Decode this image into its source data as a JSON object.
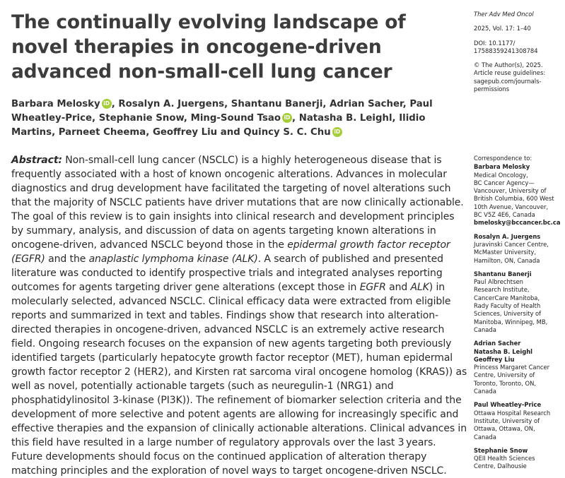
{
  "article": {
    "title": "The continually evolving landscape of novel therapies in oncogene-driven advanced non-small-cell lung cancer",
    "authors": [
      {
        "name": "Barbara Melosky",
        "orcid": true,
        "sep": ", "
      },
      {
        "name": "Rosalyn A. Juergens",
        "orcid": false,
        "sep": ", "
      },
      {
        "name": "Shantanu Banerji",
        "orcid": false,
        "sep": ", "
      },
      {
        "name": "Adrian Sacher",
        "orcid": false,
        "sep": ", "
      },
      {
        "name": "Paul Wheatley-Price",
        "orcid": false,
        "sep": ", "
      },
      {
        "name": "Stephanie Snow",
        "orcid": false,
        "sep": ", "
      },
      {
        "name": "Ming-Sound Tsao",
        "orcid": true,
        "sep": ", "
      },
      {
        "name": "Natasha B. Leighl",
        "orcid": false,
        "sep": ", "
      },
      {
        "name": "Ilidio Martins",
        "orcid": false,
        "sep": ", "
      },
      {
        "name": "Parneet Cheema",
        "orcid": false,
        "sep": ", "
      },
      {
        "name": "Geoffrey Liu",
        "orcid": false,
        "sep": " and "
      },
      {
        "name": "Quincy S. C. Chu",
        "orcid": true,
        "sep": ""
      }
    ],
    "orcid_badge": "iD",
    "abstract_label": "Abstract:",
    "abstract_segments": [
      {
        "t": " Non-small-cell lung cancer (NSCLC) is a highly heterogeneous disease that is frequently associated with a host of known oncogenic alterations. Advances in molecular diagnostics and drug development have facilitated the targeting of novel alterations such that the majority of NSCLC patients have driver mutations that are now clinically actionable. The goal of this review is to gain insights into clinical research and development principles by summary, analysis, and discussion of data on agents targeting known alterations in oncogene-driven, advanced NSCLC beyond those in the ",
        "i": false
      },
      {
        "t": "epidermal growth factor receptor (EGFR)",
        "i": true
      },
      {
        "t": " and the ",
        "i": false
      },
      {
        "t": "anaplastic lymphoma kinase (ALK)",
        "i": true
      },
      {
        "t": ". A search of published and presented literature was conducted to identify prospective trials and integrated analyses reporting outcomes for agents targeting driver gene alterations (except those in ",
        "i": false
      },
      {
        "t": "EGFR",
        "i": true
      },
      {
        "t": " and ",
        "i": false
      },
      {
        "t": "ALK",
        "i": true
      },
      {
        "t": ") in molecularly selected, advanced NSCLC. Clinical efficacy data were extracted from eligible reports and summarized in text and tables. Findings show that research into alteration-directed therapies in oncogene-driven, advanced NSCLC is an extremely active research field. Ongoing research focuses on the expansion of new agents targeting both previously identified targets (particularly hepatocyte growth factor receptor (MET), human epidermal growth factor receptor 2 (HER2), and Kirsten rat sarcoma viral oncogene homolog (KRAS)) as well as novel, potentially actionable targets (such as neuregulin-1 (NRG1) and phosphatidylinositol 3-kinase (PI3K)). The refinement of biomarker selection criteria and the development of more selective and potent agents are allowing for increasingly specific and effective therapies and the expansion of clinically actionable alterations. Clinical advances in this field have resulted in a large number of regulatory approvals over the last 3 years. Future developments should focus on the continued application of alteration therapy matching principles and the exploration of novel ways to target oncogene-driven NSCLC.",
        "i": false
      }
    ]
  },
  "sidebar": {
    "journal": "Ther Adv Med Oncol",
    "volume": "2025, Vol. 17: 1–40",
    "doi_label": "DOI: 10.1177/",
    "doi_value": "17588359241308784",
    "copyright": "© The Author(s), 2025.",
    "reuse_1": "Article reuse guidelines:",
    "reuse_2": "sagepub.com/journals-",
    "reuse_3": "permissions"
  },
  "correspondence": {
    "label": "Correspondence to:",
    "blocks": [
      {
        "names": [
          "Barbara Melosky"
        ],
        "lines": [
          "Medical Oncology,",
          "BC Cancer Agency—",
          "Vancouver, University of",
          "British Columbia, 600 West",
          "10th Avenue, Vancouver,",
          "BC V5Z 4E6, Canada"
        ],
        "email": "bmelosky@bccancer.bc.ca"
      },
      {
        "names": [
          "Rosalyn A. Juergens"
        ],
        "lines": [
          "Juravinski Cancer Centre,",
          "McMaster University,",
          "Hamilton, ON, Canada"
        ]
      },
      {
        "names": [
          "Shantanu Banerji"
        ],
        "lines": [
          "Paul Albrechtsen",
          "Research Institute,",
          "CancerCare Manitoba,",
          "Rady Faculty of Health",
          "Sciences, University of",
          "Manitoba, Winnipeg, MB,",
          "Canada"
        ]
      },
      {
        "names": [
          "Adrian Sacher",
          "Natasha B. Leighl",
          "Geoffrey Liu"
        ],
        "lines": [
          "Princess Margaret Cancer",
          "Centre, University of",
          "Toronto, Toronto, ON,",
          "Canada"
        ]
      },
      {
        "names": [
          "Paul Wheatley-Price"
        ],
        "lines": [
          "Ottawa Hospital Research",
          "Institute, University of",
          "Ottawa, Ottawa, ON,",
          "Canada"
        ]
      },
      {
        "names": [
          "Stephanie Snow"
        ],
        "lines": [
          "QEII Health Sciences",
          "Centre, Dalhousie"
        ]
      }
    ]
  }
}
